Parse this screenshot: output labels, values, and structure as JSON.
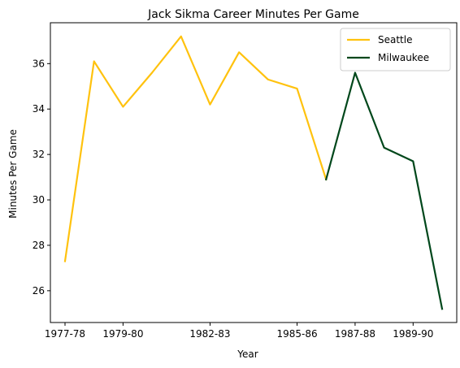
{
  "chart_data": {
    "type": "line",
    "title": "Jack Sikma Career Minutes Per Game",
    "xlabel": "Year",
    "ylabel": "Minutes Per Game",
    "x": [
      "1977-78",
      "1978-79",
      "1979-80",
      "1980-81",
      "1981-82",
      "1982-83",
      "1983-84",
      "1984-85",
      "1985-86",
      "1986-87",
      "1987-88",
      "1988-89",
      "1989-90",
      "1990-91"
    ],
    "x_ticks": [
      "1977-78",
      "1979-80",
      "1982-83",
      "1985-86",
      "1987-88",
      "1989-90"
    ],
    "y_ticks": [
      26,
      28,
      30,
      32,
      34,
      36
    ],
    "ylim": [
      24.6,
      37.8
    ],
    "grid": false,
    "legend_position": "top-right",
    "series": [
      {
        "name": "Seattle",
        "color": "#FFC20E",
        "points": [
          {
            "x": "1977-78",
            "y": 27.3
          },
          {
            "x": "1978-79",
            "y": 36.1
          },
          {
            "x": "1979-80",
            "y": 34.1
          },
          {
            "x": "1980-81",
            "y": 35.6
          },
          {
            "x": "1981-82",
            "y": 37.2
          },
          {
            "x": "1982-83",
            "y": 34.2
          },
          {
            "x": "1983-84",
            "y": 36.5
          },
          {
            "x": "1984-85",
            "y": 35.3
          },
          {
            "x": "1985-86",
            "y": 34.9
          },
          {
            "x": "1986-87",
            "y": 30.9
          }
        ]
      },
      {
        "name": "Milwaukee",
        "color": "#00471B",
        "points": [
          {
            "x": "1986-87",
            "y": 30.9
          },
          {
            "x": "1987-88",
            "y": 35.6
          },
          {
            "x": "1988-89",
            "y": 32.3
          },
          {
            "x": "1989-90",
            "y": 31.7
          },
          {
            "x": "1990-91",
            "y": 25.2
          }
        ]
      }
    ]
  }
}
